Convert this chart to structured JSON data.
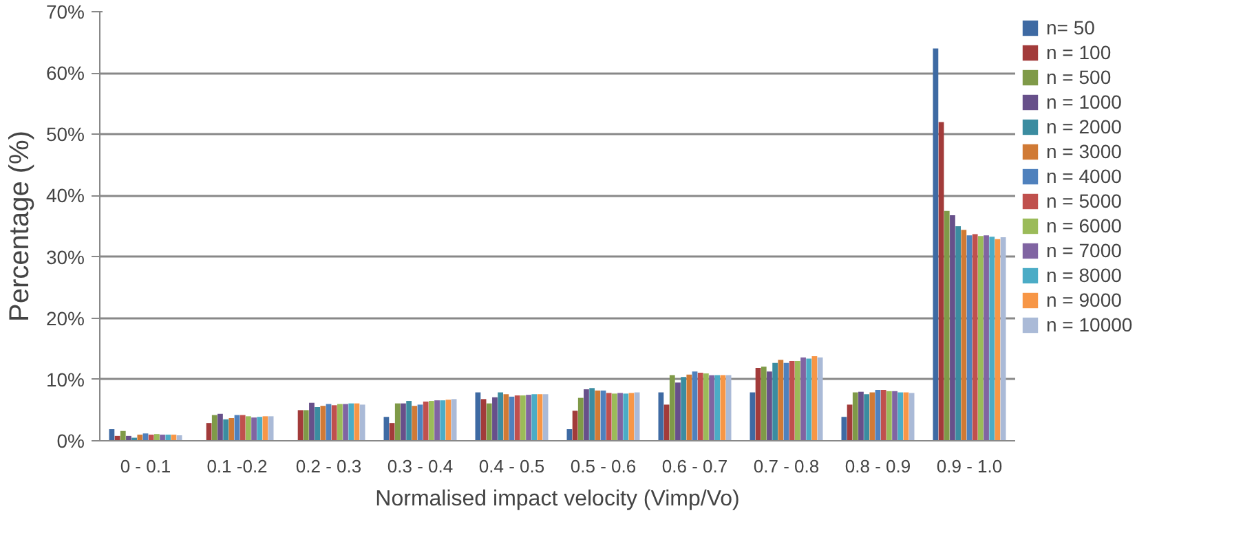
{
  "chart_data": {
    "type": "bar",
    "xlabel": "Normalised impact velocity (Vimp/Vo)",
    "ylabel": "Percentage (%)",
    "categories": [
      "0 - 0.1",
      "0.1 -0.2",
      "0.2 - 0.3",
      "0.3 - 0.4",
      "0.4 - 0.5",
      "0.5 - 0.6",
      "0.6 - 0.7",
      "0.7 - 0.8",
      "0.8 - 0.9",
      "0.9 - 1.0"
    ],
    "ylim": [
      0,
      70
    ],
    "yticks": [
      {
        "value": 0,
        "label": "0%"
      },
      {
        "value": 10,
        "label": "10%"
      },
      {
        "value": 20,
        "label": "20%"
      },
      {
        "value": 30,
        "label": "30%"
      },
      {
        "value": 40,
        "label": "40%"
      },
      {
        "value": 50,
        "label": "50%"
      },
      {
        "value": 60,
        "label": "60%"
      },
      {
        "value": 70,
        "label": "70%"
      }
    ],
    "grid": "y",
    "legend": "right",
    "series": [
      {
        "name": "n= 50",
        "color": "#3e6aa3",
        "values": [
          1.9,
          0,
          0,
          3.9,
          7.9,
          1.9,
          7.9,
          7.9,
          3.9,
          64
        ]
      },
      {
        "name": "n = 100",
        "color": "#a23b3a",
        "values": [
          0.8,
          2.9,
          5.0,
          2.9,
          6.8,
          4.9,
          5.9,
          11.9,
          5.9,
          52
        ]
      },
      {
        "name": "n = 500",
        "color": "#7f9a48",
        "values": [
          1.6,
          4.2,
          5.0,
          6.1,
          6.1,
          7.0,
          10.7,
          12.1,
          7.9,
          37.5
        ]
      },
      {
        "name": "n = 1000",
        "color": "#67508a",
        "values": [
          0.8,
          4.4,
          6.2,
          6.1,
          7.1,
          8.4,
          9.5,
          11.3,
          8.0,
          36.8
        ]
      },
      {
        "name": "n = 2000",
        "color": "#3b8ca0",
        "values": [
          0.5,
          3.5,
          5.5,
          6.5,
          7.9,
          8.6,
          10.4,
          12.7,
          7.6,
          35.0
        ]
      },
      {
        "name": "n = 3000",
        "color": "#d07a35",
        "values": [
          1.0,
          3.7,
          5.7,
          5.7,
          7.6,
          8.2,
          10.8,
          13.2,
          7.9,
          34.4
        ]
      },
      {
        "name": "n = 4000",
        "color": "#4f81bd",
        "values": [
          1.2,
          4.2,
          6.0,
          5.9,
          7.2,
          8.2,
          11.3,
          12.7,
          8.3,
          33.5
        ]
      },
      {
        "name": "n = 5000",
        "color": "#c0504d",
        "values": [
          1.0,
          4.2,
          5.8,
          6.4,
          7.4,
          7.8,
          11.1,
          13.0,
          8.3,
          33.7
        ]
      },
      {
        "name": "n = 6000",
        "color": "#9bbb59",
        "values": [
          1.1,
          4.0,
          6.0,
          6.5,
          7.4,
          7.7,
          11.0,
          13.0,
          8.1,
          33.4
        ]
      },
      {
        "name": "n = 7000",
        "color": "#8064a2",
        "values": [
          1.0,
          3.8,
          6.0,
          6.6,
          7.5,
          7.8,
          10.7,
          13.6,
          8.1,
          33.5
        ]
      },
      {
        "name": "n = 8000",
        "color": "#4bacc6",
        "values": [
          1.0,
          3.9,
          6.1,
          6.6,
          7.6,
          7.7,
          10.7,
          13.4,
          7.9,
          33.3
        ]
      },
      {
        "name": "n = 9000",
        "color": "#f79646",
        "values": [
          1.0,
          4.0,
          6.1,
          6.7,
          7.6,
          7.8,
          10.7,
          13.8,
          7.9,
          32.9
        ]
      },
      {
        "name": "n = 10000",
        "color": "#aabad7",
        "values": [
          0.9,
          4.0,
          5.9,
          6.8,
          7.6,
          7.9,
          10.7,
          13.6,
          7.8,
          33.2
        ]
      }
    ]
  }
}
